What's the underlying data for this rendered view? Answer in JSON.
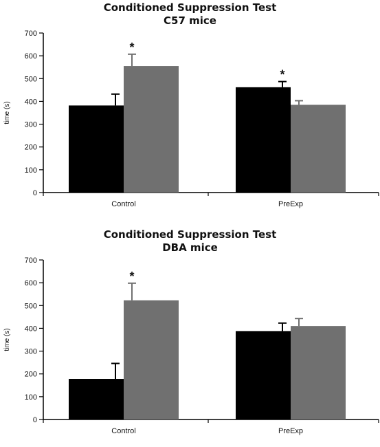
{
  "chart_data": [
    {
      "type": "bar",
      "title": "Conditioned Suppression Test",
      "subtitle": "C57 mice",
      "xlabel": "",
      "ylabel": "time (s)",
      "ylim": [
        0,
        700
      ],
      "yticks": [
        0,
        100,
        200,
        300,
        400,
        500,
        600,
        700
      ],
      "grid": false,
      "categories": [
        "Control",
        "PreExp"
      ],
      "series": [
        {
          "color": "#000000",
          "values": [
            382,
            462
          ],
          "errors": [
            50,
            25
          ],
          "significant": [
            false,
            true
          ]
        },
        {
          "color": "#707070",
          "values": [
            555,
            385
          ],
          "errors": [
            52,
            18
          ],
          "significant": [
            true,
            false
          ]
        }
      ],
      "annotation_mark": "*"
    },
    {
      "type": "bar",
      "title": "Conditioned Suppression Test",
      "subtitle": "DBA mice",
      "xlabel": "",
      "ylabel": "time (s)",
      "ylim": [
        0,
        700
      ],
      "yticks": [
        0,
        100,
        200,
        300,
        400,
        500,
        600,
        700
      ],
      "grid": false,
      "categories": [
        "Control",
        "PreExp"
      ],
      "series": [
        {
          "color": "#000000",
          "values": [
            178,
            388
          ],
          "errors": [
            68,
            35
          ],
          "significant": [
            false,
            false
          ]
        },
        {
          "color": "#707070",
          "values": [
            523,
            410
          ],
          "errors": [
            75,
            33
          ],
          "significant": [
            true,
            false
          ]
        }
      ],
      "annotation_mark": "*"
    }
  ]
}
